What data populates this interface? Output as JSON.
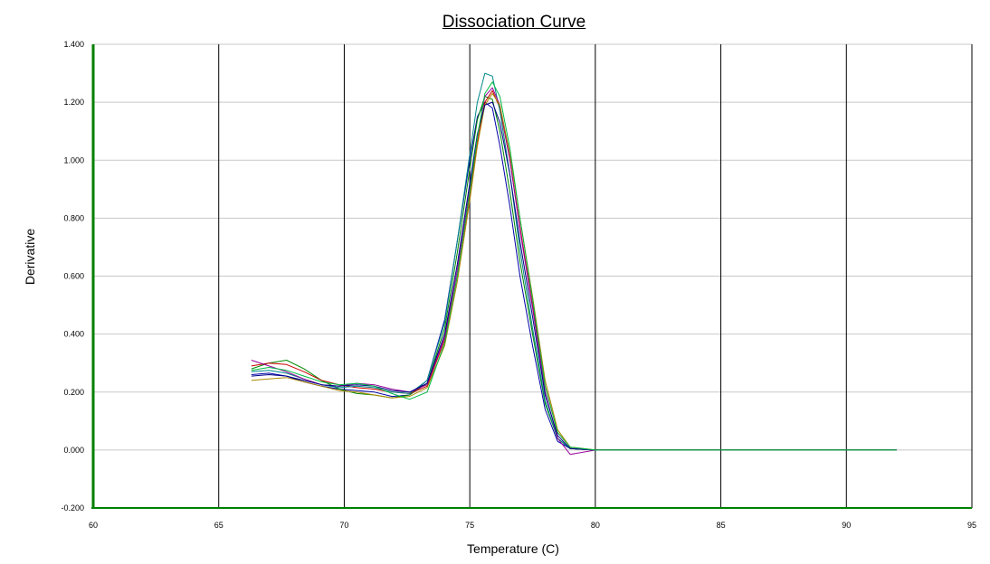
{
  "chart_data": {
    "type": "line",
    "title": "Dissociation Curve",
    "xlabel": "Temperature (C)",
    "ylabel": "Derivative",
    "xlim": [
      60,
      95
    ],
    "ylim": [
      -0.2,
      1.4
    ],
    "x_ticks": [
      60,
      65,
      70,
      75,
      80,
      85,
      90,
      95
    ],
    "x_tick_labels": [
      "60",
      "65",
      "70",
      "75",
      "80",
      "85",
      "90",
      "95"
    ],
    "y_ticks": [
      -0.2,
      0,
      0.2,
      0.4,
      0.6,
      0.8,
      1.0,
      1.2,
      1.4
    ],
    "y_tick_labels": [
      "-0.200",
      "0.000",
      "0.200",
      "0.400",
      "0.600",
      "0.800",
      "1.000",
      "1.200",
      "1.400"
    ],
    "grid": "vertical lines at major x ticks, horizontal lines at major y ticks",
    "legend": "none",
    "x": [
      66.3,
      67.0,
      67.7,
      68.4,
      69.1,
      69.8,
      70.5,
      71.2,
      71.9,
      72.6,
      73.3,
      74.0,
      74.5,
      75.0,
      75.3,
      75.6,
      75.9,
      76.2,
      76.6,
      77.0,
      77.5,
      78.0,
      78.5,
      79.0,
      80.0,
      82.0,
      85.0,
      88.0,
      92.0
    ],
    "series": [
      {
        "color": "#0000aa",
        "values": [
          0.26,
          0.265,
          0.255,
          0.235,
          0.22,
          0.21,
          0.205,
          0.2,
          0.185,
          0.19,
          0.24,
          0.45,
          0.72,
          1.0,
          1.15,
          1.2,
          1.18,
          1.05,
          0.84,
          0.6,
          0.36,
          0.14,
          0.03,
          0.005,
          0.0,
          0.0,
          0.0,
          0.0,
          0.0
        ]
      },
      {
        "color": "#008800",
        "values": [
          0.28,
          0.3,
          0.31,
          0.28,
          0.24,
          0.21,
          0.195,
          0.19,
          0.18,
          0.19,
          0.23,
          0.42,
          0.68,
          0.97,
          1.14,
          1.22,
          1.21,
          1.1,
          0.89,
          0.65,
          0.4,
          0.16,
          0.04,
          0.005,
          0.0,
          0.0,
          0.0,
          0.0,
          0.0
        ]
      },
      {
        "color": "#cc0000",
        "values": [
          0.29,
          0.3,
          0.295,
          0.27,
          0.24,
          0.225,
          0.215,
          0.21,
          0.2,
          0.195,
          0.22,
          0.38,
          0.6,
          0.88,
          1.06,
          1.2,
          1.24,
          1.18,
          1.0,
          0.77,
          0.5,
          0.22,
          0.06,
          0.01,
          0.0,
          0.0,
          0.0,
          0.0,
          0.0
        ]
      },
      {
        "color": "#008888",
        "values": [
          0.27,
          0.275,
          0.265,
          0.245,
          0.225,
          0.215,
          0.22,
          0.215,
          0.2,
          0.195,
          0.24,
          0.44,
          0.72,
          1.02,
          1.2,
          1.3,
          1.29,
          1.17,
          0.95,
          0.69,
          0.42,
          0.17,
          0.04,
          0.005,
          0.0,
          0.0,
          0.0,
          0.0,
          0.0
        ]
      },
      {
        "color": "#990099",
        "values": [
          0.31,
          0.29,
          0.27,
          0.245,
          0.225,
          0.22,
          0.23,
          0.225,
          0.21,
          0.2,
          0.225,
          0.39,
          0.62,
          0.9,
          1.08,
          1.22,
          1.25,
          1.19,
          1.0,
          0.76,
          0.49,
          0.2,
          0.04,
          -0.015,
          0.0,
          0.0,
          0.0,
          0.0,
          0.0
        ]
      },
      {
        "color": "#aa8800",
        "values": [
          0.24,
          0.245,
          0.25,
          0.235,
          0.22,
          0.205,
          0.2,
          0.19,
          0.18,
          0.185,
          0.215,
          0.36,
          0.58,
          0.86,
          1.05,
          1.19,
          1.23,
          1.19,
          1.02,
          0.8,
          0.53,
          0.24,
          0.07,
          0.01,
          0.0,
          0.0,
          0.0,
          0.0,
          0.0
        ]
      },
      {
        "color": "#000088",
        "values": [
          0.255,
          0.26,
          0.255,
          0.24,
          0.225,
          0.22,
          0.225,
          0.22,
          0.205,
          0.2,
          0.23,
          0.4,
          0.64,
          0.92,
          1.09,
          1.19,
          1.2,
          1.13,
          0.95,
          0.72,
          0.46,
          0.19,
          0.05,
          0.005,
          0.0,
          0.0,
          0.0,
          0.0,
          0.0
        ]
      },
      {
        "color": "#00bb44",
        "values": [
          0.275,
          0.285,
          0.275,
          0.255,
          0.235,
          0.225,
          0.23,
          0.22,
          0.195,
          0.175,
          0.2,
          0.37,
          0.6,
          0.89,
          1.08,
          1.23,
          1.27,
          1.22,
          1.04,
          0.8,
          0.52,
          0.22,
          0.06,
          0.01,
          0.0,
          0.0,
          0.0,
          0.0,
          0.0
        ]
      }
    ]
  }
}
